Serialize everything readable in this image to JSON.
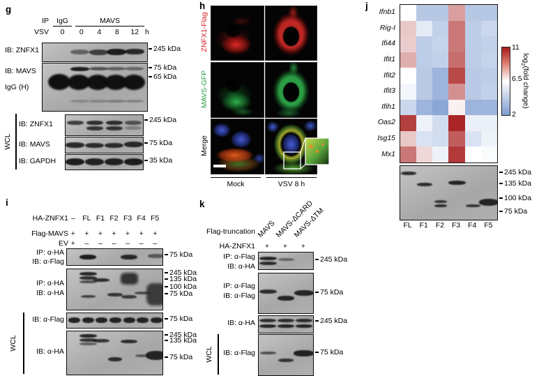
{
  "panel_g": {
    "label": "g",
    "ip_label": "IP",
    "group_igg": "IgG",
    "group_mavs": "MAVS",
    "vsv_label": "VSV",
    "igg_time": "0",
    "mavs_times": [
      "0",
      "4",
      "8",
      "12"
    ],
    "time_unit": "h",
    "blot1_label": "IB: ZNFX1",
    "blot1_marker": "245 kDa",
    "blot2_label": "IB: MAVS",
    "blot2_label2": "IgG (H)",
    "blot2_marker1": "75 kDa",
    "blot2_marker2": "65 kDa",
    "wcl_label": "WCL",
    "wcl_blots": [
      {
        "label": "IB: ZNFX1",
        "marker": "245 kDa"
      },
      {
        "label": "IB: MAVS",
        "marker": "75 kDa"
      },
      {
        "label": "IB: GAPDH",
        "marker": "35 kDa"
      }
    ]
  },
  "panel_h": {
    "label": "h",
    "row_labels": [
      {
        "text": "ZNFX1-Flag",
        "color": "#d22027"
      },
      {
        "text": "MAVS-GFP",
        "color": "#2aa148"
      },
      {
        "text": "Merge",
        "color": "#000000"
      }
    ],
    "col_labels": [
      "Mock",
      "VSV 8 h"
    ]
  },
  "panel_i": {
    "label": "i",
    "condition_rows": [
      {
        "name": "HA-ZNFX1",
        "values": [
          "–",
          "FL",
          "F1",
          "F2",
          "F3",
          "F4",
          "F5"
        ]
      },
      {
        "name": "Flag-MAVS",
        "values": [
          "+",
          "+",
          "+",
          "+",
          "+",
          "+",
          "+"
        ]
      },
      {
        "name": "EV",
        "values": [
          "+",
          "–",
          "–",
          "–",
          "–",
          "–",
          "–"
        ]
      }
    ],
    "blot1_line1": "IP: α-HA",
    "blot1_line2": "IB: α-Flag",
    "blot1_marker": "75 kDa",
    "blot2_line1": "IP: α-HA",
    "blot2_line2": "IB: α-HA",
    "blot2_markers": [
      "245 kDa",
      "135 kDa",
      "100 kDa",
      "75 kDa"
    ],
    "blot3_label": "IB: α-Flag",
    "blot3_marker": "75 kDa",
    "blot4_label": "IB: α-HA",
    "blot4_markers": [
      "245 kDa",
      "135 kDa",
      "75 kDa"
    ],
    "wcl_label": "WCL"
  },
  "panel_j": {
    "label": "j",
    "lane_labels": [
      "FL",
      "F1",
      "F2",
      "F3",
      "F4",
      "F5"
    ],
    "colorbar": {
      "tick_top": "11",
      "tick_mid": "6.5",
      "tick_bottom": "2",
      "label_prefix": "log",
      "label_sub": "2",
      "label_suffix": "(fold change)"
    },
    "blot_markers": [
      "245 kDa",
      "135 kDa",
      "100 kDa",
      "75 kDa"
    ]
  },
  "panel_k": {
    "label": "k",
    "truncation_label": "Flag-truncation",
    "lane_labels": [
      "MAVS",
      "MAVS-ΔCARD",
      "MAVS-ΔTM"
    ],
    "ha_name": "HA-ZNFX1",
    "ha_values": [
      "+",
      "+",
      "+"
    ],
    "blot1_line1": "IP: α-Flag",
    "blot1_line2": "IB: α-HA",
    "blot1_marker": "245 kDa",
    "blot2_line1": "IP: α-Flag",
    "blot2_line2": "IB: α-Flag",
    "blot2_marker": "75 kDa",
    "blot3_label": "IB: α-HA",
    "blot3_marker": "245 kDa",
    "blot4_label": "IB: α-Flag",
    "blot4_marker": "75 kDa",
    "wcl_label": "WCL"
  },
  "chart_data": {
    "type": "heatmap",
    "title": "",
    "rows": [
      "Ifnb1",
      "Rig-I",
      "Ifi44",
      "Ifit1",
      "Ifit2",
      "Ifit3",
      "Ifih1",
      "Oas2",
      "Isg15",
      "Mx1"
    ],
    "columns": [
      "FL",
      "F1",
      "F2",
      "F3",
      "F4",
      "F5"
    ],
    "values": [
      [
        6.5,
        4.0,
        4.0,
        8.4,
        4.0,
        4.0
      ],
      [
        7.6,
        5.6,
        4.4,
        9.2,
        4.2,
        4.7
      ],
      [
        7.5,
        4.2,
        4.5,
        9.2,
        4.2,
        4.4
      ],
      [
        8.1,
        4.2,
        4.4,
        9.4,
        4.2,
        4.5
      ],
      [
        6.5,
        4.1,
        3.1,
        10.1,
        4.1,
        4.2
      ],
      [
        6.1,
        4.1,
        3.1,
        8.7,
        4.1,
        4.4
      ],
      [
        4.7,
        3.1,
        2.5,
        6.8,
        3.1,
        3.1
      ],
      [
        10.3,
        5.9,
        4.9,
        10.8,
        5.8,
        5.8
      ],
      [
        7.6,
        5.2,
        4.9,
        9.7,
        5.2,
        5.9
      ],
      [
        9.2,
        7.3,
        5.9,
        10.4,
        6.5,
        6.3
      ]
    ],
    "colorscale": {
      "min": 2,
      "mid": 6.5,
      "max": 11,
      "min_color": "#7d9cd1",
      "mid_color": "#ffffff",
      "max_color": "#a61c1c"
    },
    "legend_label": "log2(fold change)",
    "legend_position": "right"
  }
}
